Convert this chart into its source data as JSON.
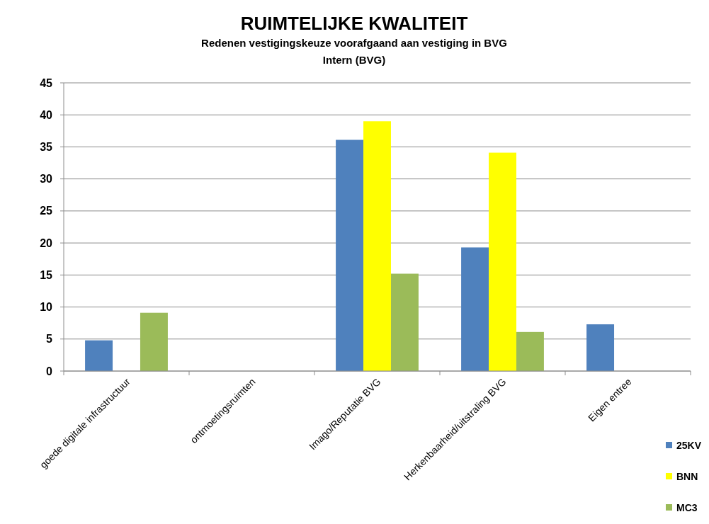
{
  "chart_data": {
    "type": "bar",
    "title": "RUIMTELIJKE KWALITEIT",
    "subtitle": "Redenen vestigingskeuze voorafgaand aan vestiging in BVG\nIntern (BVG)",
    "categories": [
      "goede digitale infrastructuur",
      "ontmoetingsruimten",
      "Imago/Reputatie BVG",
      "Herkenbaarheid/uitstraling BVG",
      "Eigen entree"
    ],
    "series": [
      {
        "name": "25KV",
        "color": "#4f81bd",
        "values": [
          4.8,
          null,
          36.1,
          19.3,
          7.3
        ]
      },
      {
        "name": "BNN",
        "color": "#ffff00",
        "values": [
          null,
          null,
          39.0,
          34.1,
          null
        ]
      },
      {
        "name": "MC3",
        "color": "#9bbb59",
        "values": [
          9.1,
          null,
          15.2,
          6.1,
          null
        ]
      }
    ],
    "ylim": [
      0,
      45
    ],
    "yticks": [
      0,
      5,
      10,
      15,
      20,
      25,
      30,
      35,
      40,
      45
    ],
    "grid": "y",
    "legend": "bottom right"
  }
}
